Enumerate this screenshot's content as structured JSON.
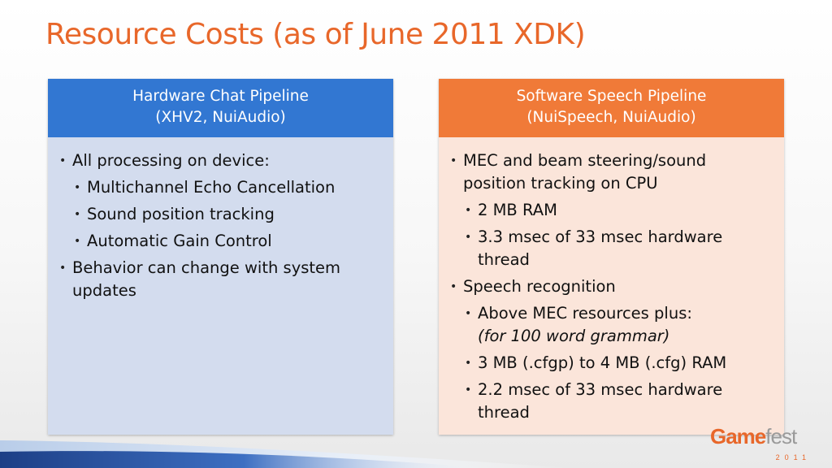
{
  "title": "Resource Costs (as of June 2011 XDK)",
  "left_panel": {
    "header_line1": "Hardware Chat Pipeline",
    "header_line2": "(XHV2, NuiAudio)",
    "items": [
      {
        "level": 1,
        "text": "All processing on device:"
      },
      {
        "level": 2,
        "text": "Multichannel Echo Cancellation"
      },
      {
        "level": 2,
        "text": "Sound position tracking"
      },
      {
        "level": 2,
        "text": "Automatic Gain Control"
      },
      {
        "level": 1,
        "text": "Behavior can change with system updates"
      }
    ]
  },
  "right_panel": {
    "header_line1": "Software Speech Pipeline",
    "header_line2": "(NuiSpeech, NuiAudio)",
    "items": [
      {
        "level": 1,
        "text": "MEC and beam steering/sound position tracking on CPU"
      },
      {
        "level": 2,
        "text": "2 MB RAM"
      },
      {
        "level": 2,
        "text": "3.3 msec of 33 msec hardware thread"
      },
      {
        "level": 1,
        "text": "Speech recognition"
      },
      {
        "level": 2,
        "text": "Above MEC resources plus:",
        "italic": "(for 100 word grammar)"
      },
      {
        "level": 2,
        "text": "3 MB (.cfgp) to 4 MB (.cfg) RAM"
      },
      {
        "level": 2,
        "text": "2.2 msec of 33 msec hardware thread"
      }
    ]
  },
  "logo": {
    "word_game": "Game",
    "word_fest": "fest",
    "year": "2011"
  },
  "colors": {
    "title": "#e8672a",
    "left_header": "#3277d2",
    "left_body": "#d3dcee",
    "right_header": "#f07a38",
    "right_body": "#fbe5da"
  }
}
